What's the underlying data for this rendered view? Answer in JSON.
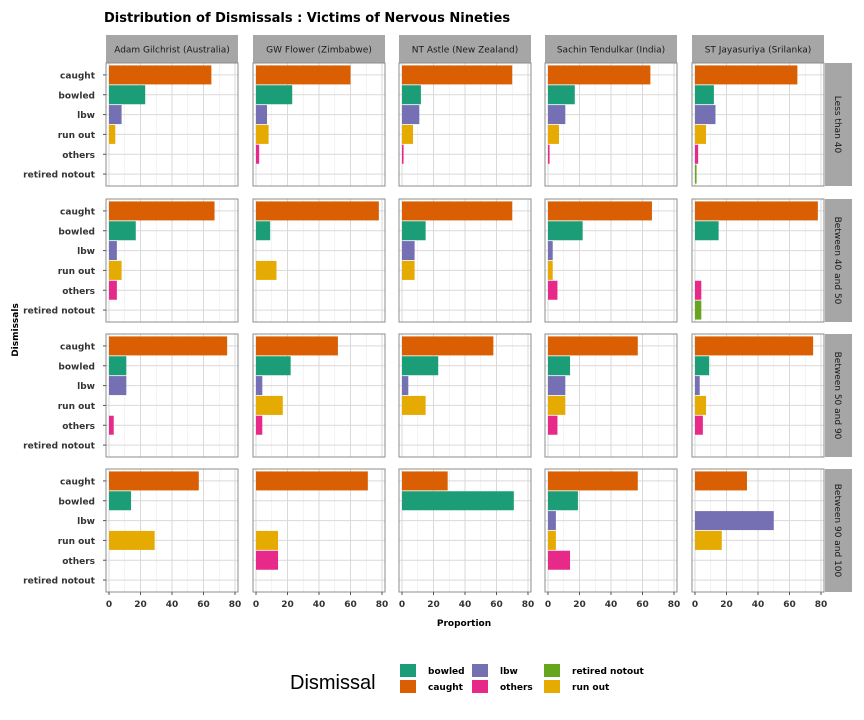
{
  "chart_data": {
    "type": "bar",
    "orientation": "horizontal",
    "title": "Distribution of Dismissals :  Victims of Nervous Nineties",
    "xlabel": "Proportion",
    "ylabel": "Dismissals",
    "xlim": [
      0,
      80
    ],
    "xticks": [
      0,
      20,
      40,
      60,
      80
    ],
    "categories": [
      "caught",
      "bowled",
      "lbw",
      "run out",
      "others",
      "retired notout"
    ],
    "players": [
      "Adam Gilchrist (Australia)",
      "GW Flower (Zimbabwe)",
      "NT Astle (New Zealand)",
      "Sachin Tendulkar (India)",
      "ST Jayasuriya (Srilanka)"
    ],
    "score_bands": [
      "Less than 40",
      "Between 40 and 50",
      "Between 50 and 90",
      "Between 90 and 100"
    ],
    "colors": {
      "bowled": "#1b9e77",
      "caught": "#d95f02",
      "lbw": "#7570b3",
      "others": "#e7298a",
      "retired notout": "#66a61e",
      "run out": "#e6ab02"
    },
    "strip_color": "#a6a6a6",
    "grid": true,
    "legend": {
      "title": "Dismissal",
      "position": "bottom",
      "entries": [
        "bowled",
        "caught",
        "lbw",
        "others",
        "retired notout",
        "run out"
      ]
    },
    "panels": [
      [
        {
          "caught": 65,
          "bowled": 23,
          "lbw": 8,
          "run out": 4,
          "others": 0,
          "retired notout": 0
        },
        {
          "caught": 60,
          "bowled": 23,
          "lbw": 7,
          "run out": 8,
          "others": 2,
          "retired notout": 0
        },
        {
          "caught": 70,
          "bowled": 12,
          "lbw": 11,
          "run out": 7,
          "others": 1,
          "retired notout": 0
        },
        {
          "caught": 65,
          "bowled": 17,
          "lbw": 11,
          "run out": 7,
          "others": 1,
          "retired notout": 0
        },
        {
          "caught": 65,
          "bowled": 12,
          "lbw": 13,
          "run out": 7,
          "others": 2,
          "retired notout": 1
        }
      ],
      [
        {
          "caught": 67,
          "bowled": 17,
          "lbw": 5,
          "run out": 8,
          "others": 5,
          "retired notout": 0
        },
        {
          "caught": 78,
          "bowled": 9,
          "lbw": 0,
          "run out": 13,
          "others": 0,
          "retired notout": 0
        },
        {
          "caught": 70,
          "bowled": 15,
          "lbw": 8,
          "run out": 8,
          "others": 0,
          "retired notout": 0
        },
        {
          "caught": 66,
          "bowled": 22,
          "lbw": 3,
          "run out": 3,
          "others": 6,
          "retired notout": 0
        },
        {
          "caught": 78,
          "bowled": 15,
          "lbw": 0,
          "run out": 0,
          "others": 4,
          "retired notout": 4
        }
      ],
      [
        {
          "caught": 75,
          "bowled": 11,
          "lbw": 11,
          "run out": 0,
          "others": 3,
          "retired notout": 0
        },
        {
          "caught": 52,
          "bowled": 22,
          "lbw": 4,
          "run out": 17,
          "others": 4,
          "retired notout": 0
        },
        {
          "caught": 58,
          "bowled": 23,
          "lbw": 4,
          "run out": 15,
          "others": 0,
          "retired notout": 0
        },
        {
          "caught": 57,
          "bowled": 14,
          "lbw": 11,
          "run out": 11,
          "others": 6,
          "retired notout": 0
        },
        {
          "caught": 75,
          "bowled": 9,
          "lbw": 3,
          "run out": 7,
          "others": 5,
          "retired notout": 0
        }
      ],
      [
        {
          "caught": 57,
          "bowled": 14,
          "lbw": 0,
          "run out": 29,
          "others": 0,
          "retired notout": 0
        },
        {
          "caught": 71,
          "bowled": 0,
          "lbw": 0,
          "run out": 14,
          "others": 14,
          "retired notout": 0
        },
        {
          "caught": 29,
          "bowled": 71,
          "lbw": 0,
          "run out": 0,
          "others": 0,
          "retired notout": 0
        },
        {
          "caught": 57,
          "bowled": 19,
          "lbw": 5,
          "run out": 5,
          "others": 14,
          "retired notout": 0
        },
        {
          "caught": 33,
          "bowled": 0,
          "lbw": 50,
          "run out": 17,
          "others": 0,
          "retired notout": 0
        }
      ]
    ]
  }
}
